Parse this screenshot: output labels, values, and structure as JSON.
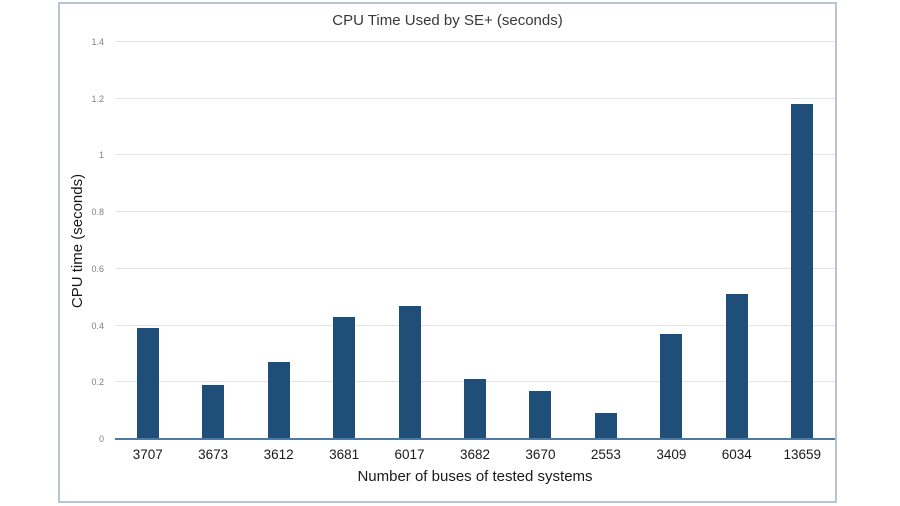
{
  "chart_data": {
    "type": "bar",
    "title": "CPU Time Used by SE+ (seconds)",
    "categories": [
      "3707",
      "3673",
      "3612",
      "3681",
      "6017",
      "3682",
      "3670",
      "2553",
      "3409",
      "6034",
      "13659"
    ],
    "values": [
      0.39,
      0.19,
      0.27,
      0.43,
      0.47,
      0.21,
      0.17,
      0.09,
      0.37,
      0.51,
      1.18
    ],
    "xlabel": "Number of buses of tested systems",
    "ylabel": "CPU time (seconds)",
    "ylim": [
      0,
      1.4
    ],
    "yticks": [
      {
        "value": 0,
        "label": "0"
      },
      {
        "value": 0.2,
        "label": "0.2"
      },
      {
        "value": 0.4,
        "label": "0.4"
      },
      {
        "value": 0.6,
        "label": "0.6"
      },
      {
        "value": 0.8,
        "label": "0.8"
      },
      {
        "value": 1,
        "label": "1"
      },
      {
        "value": 1.2,
        "label": "1.2"
      },
      {
        "value": 1.4,
        "label": "1.4"
      }
    ],
    "grid": true,
    "legend_position": "none",
    "colors": {
      "bar": "#1f4e79",
      "axis_line": "#4d79a4",
      "gridline": "#e4e4e4",
      "chart_border": "#b7c4d1",
      "title_text": "#383838",
      "tick_text": "#818181",
      "label_text": "#1a1a1a"
    }
  }
}
